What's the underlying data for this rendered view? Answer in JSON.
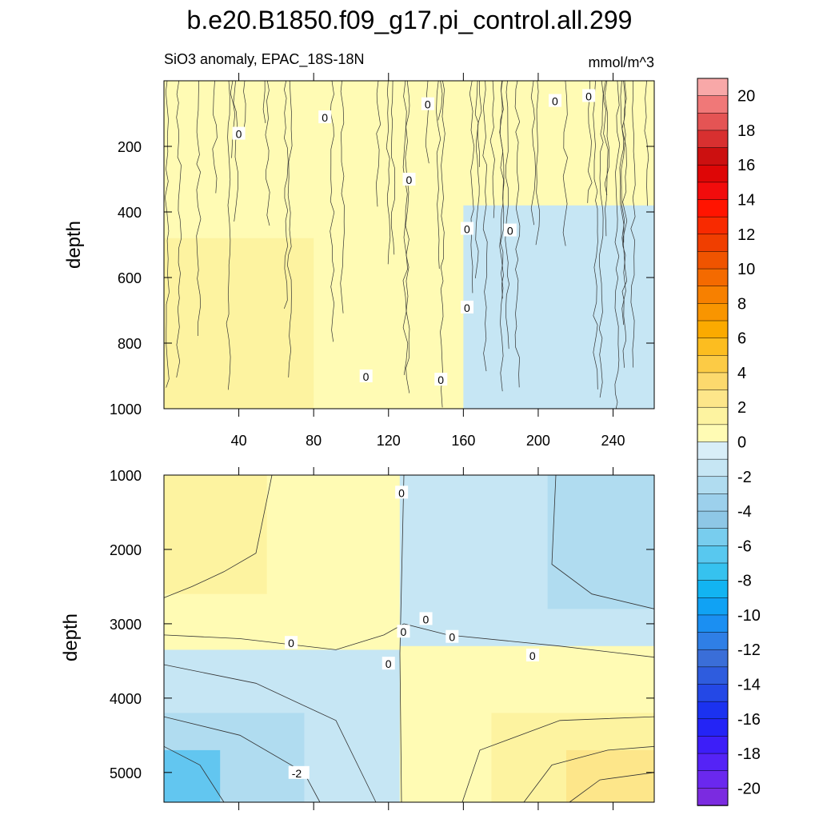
{
  "chart_data": {
    "type": "heatmap",
    "title": "b.e20.B1850.f09_g17.pi_control.all.299",
    "subtitle_left": "SiO3 anomaly, EPAC_18S-18N",
    "units": "mmol/m^3",
    "colorbar": {
      "levels": [
        -21,
        -20,
        -19,
        -18,
        -17,
        -16,
        -15,
        -14,
        -13,
        -12,
        -11,
        -10,
        -9,
        -8,
        -7,
        -6,
        -5,
        -4,
        -3,
        -2,
        -1,
        0,
        1,
        2,
        3,
        4,
        5,
        6,
        7,
        8,
        9,
        10,
        11,
        12,
        13,
        14,
        15,
        16,
        17,
        18,
        19,
        20,
        21
      ],
      "tick_labels": [
        "20",
        "18",
        "16",
        "14",
        "12",
        "10",
        "8",
        "6",
        "4",
        "2",
        "0",
        "-2",
        "-4",
        "-6",
        "-8",
        "-10",
        "-12",
        "-14",
        "-16",
        "-18",
        "-20"
      ],
      "colors": [
        "#7b2be0",
        "#6a28ee",
        "#5523f6",
        "#3d1ef8",
        "#2424f6",
        "#1b32f0",
        "#2448e6",
        "#2e5cde",
        "#3a6ed8",
        "#2f7fe6",
        "#1b8ff2",
        "#10a2f4",
        "#12b4f2",
        "#36c2ef",
        "#58c8ef",
        "#78cdee",
        "#8ec7e6",
        "#9cd0ec",
        "#b0dcf0",
        "#c6e6f4",
        "#d8eef8",
        "#fffbb4",
        "#fdf3a0",
        "#fde68a",
        "#fcd96d",
        "#fccb45",
        "#fcbd20",
        "#fbaa00",
        "#f99500",
        "#f78000",
        "#f46a00",
        "#f05400",
        "#f03e00",
        "#f82a00",
        "#ff1400",
        "#f20c0c",
        "#de0606",
        "#cc1010",
        "#d83030",
        "#e45454",
        "#f07878",
        "#f8a8a8"
      ]
    },
    "panels": [
      {
        "name": "upper",
        "xlabel": "",
        "ylabel": "depth",
        "xlim": [
          0,
          262
        ],
        "ylim": [
          1000,
          0
        ],
        "xticks": [
          "40",
          "80",
          "120",
          "160",
          "200",
          "240"
        ],
        "yticks": [
          "200",
          "400",
          "600",
          "800",
          "1000"
        ],
        "regions": [
          {
            "value": 0.5,
            "color": "#fffbb4",
            "x": [
              0,
              262
            ],
            "y": [
              0,
              1000
            ]
          },
          {
            "value": 1.5,
            "color": "#fdf3a0",
            "x": [
              0,
              80
            ],
            "y": [
              480,
              1000
            ]
          },
          {
            "value": -0.5,
            "color": "#c6e6f4",
            "x": [
              160,
              262
            ],
            "y": [
              380,
              1000
            ]
          }
        ],
        "contour_labels": [
          {
            "text": "0",
            "x": 40,
            "y": 160
          },
          {
            "text": "0",
            "x": 86,
            "y": 110
          },
          {
            "text": "0",
            "x": 141,
            "y": 70
          },
          {
            "text": "0",
            "x": 209,
            "y": 60
          },
          {
            "text": "0",
            "x": 227,
            "y": 45
          },
          {
            "text": "0",
            "x": 131,
            "y": 300
          },
          {
            "text": "0",
            "x": 162,
            "y": 450
          },
          {
            "text": "0",
            "x": 185,
            "y": 455
          },
          {
            "text": "0",
            "x": 162,
            "y": 690
          },
          {
            "text": "0",
            "x": 108,
            "y": 900
          },
          {
            "text": "0",
            "x": 148,
            "y": 910
          }
        ]
      },
      {
        "name": "lower",
        "xlabel": "",
        "ylabel": "depth",
        "xlim": [
          0,
          262
        ],
        "ylim": [
          5400,
          1000
        ],
        "xticks": [],
        "yticks": [
          "1000",
          "2000",
          "3000",
          "4000",
          "5000"
        ],
        "regions": [
          {
            "value": 0.5,
            "color": "#fffbb4",
            "x": [
              0,
              262
            ],
            "y": [
              1000,
              5400
            ]
          },
          {
            "value": 1.5,
            "color": "#fdf3a0",
            "x": [
              0,
              55
            ],
            "y": [
              1000,
              2600
            ]
          },
          {
            "value": -0.5,
            "color": "#c6e6f4",
            "x": [
              126,
              262
            ],
            "y": [
              1000,
              3300
            ]
          },
          {
            "value": -1.5,
            "color": "#b0dcf0",
            "x": [
              205,
              262
            ],
            "y": [
              1000,
              2800
            ]
          },
          {
            "value": -0.5,
            "color": "#c6e6f4",
            "x": [
              0,
              126
            ],
            "y": [
              3350,
              5400
            ]
          },
          {
            "value": -1.5,
            "color": "#b0dcf0",
            "x": [
              0,
              75
            ],
            "y": [
              4200,
              5400
            ]
          },
          {
            "value": -3.5,
            "color": "#62c6f0",
            "x": [
              0,
              30
            ],
            "y": [
              4700,
              5400
            ]
          },
          {
            "value": 1.5,
            "color": "#fdf3a0",
            "x": [
              175,
              262
            ],
            "y": [
              4200,
              5400
            ]
          },
          {
            "value": 2.5,
            "color": "#fde68a",
            "x": [
              215,
              262
            ],
            "y": [
              4700,
              5400
            ]
          }
        ],
        "contour_labels": [
          {
            "text": "0",
            "x": 127,
            "y": 1230
          },
          {
            "text": "0",
            "x": 68,
            "y": 3250
          },
          {
            "text": "0",
            "x": 128,
            "y": 3100
          },
          {
            "text": "0",
            "x": 140,
            "y": 2930
          },
          {
            "text": "0",
            "x": 154,
            "y": 3170
          },
          {
            "text": "0",
            "x": 197,
            "y": 3420
          },
          {
            "text": "0",
            "x": 120,
            "y": 3530
          },
          {
            "text": "-2",
            "x": 70,
            "y": 5000
          }
        ]
      }
    ]
  }
}
